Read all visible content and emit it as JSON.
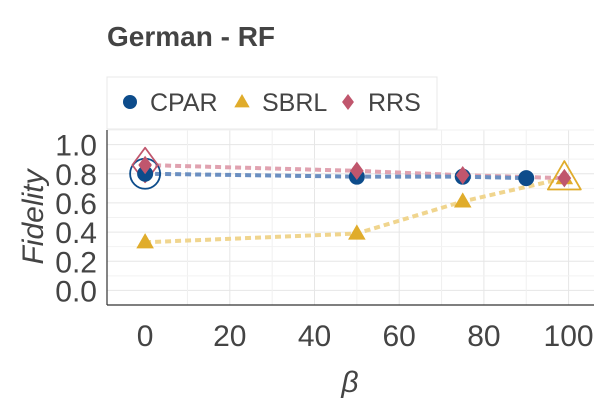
{
  "chart_data": {
    "type": "line",
    "title": "German - RF",
    "xlabel": "β",
    "ylabel": "Fidelity",
    "xlim": [
      -9,
      106
    ],
    "ylim": [
      -0.1,
      1.1
    ],
    "xticks": [
      0,
      20,
      40,
      60,
      80,
      100
    ],
    "yticks": [
      0.0,
      0.2,
      0.4,
      0.6,
      0.8,
      1.0
    ],
    "xtick_labels": [
      "0",
      "20",
      "40",
      "60",
      "80",
      "100"
    ],
    "ytick_labels": [
      "0.0",
      "0.2",
      "0.4",
      "0.6",
      "0.8",
      "1.0"
    ],
    "grid": true,
    "legend_position": "top",
    "series": [
      {
        "name": "CPAR",
        "marker": "circle",
        "color": "#0d4c8b",
        "line_color": "#6b8fc1",
        "x": [
          0,
          50,
          75,
          90
        ],
        "y": [
          0.8,
          0.78,
          0.78,
          0.77
        ]
      },
      {
        "name": "SBRL",
        "marker": "triangle",
        "color": "#e0ac2b",
        "line_color": "#f0d58e",
        "x": [
          0,
          50,
          75,
          99
        ],
        "y": [
          0.33,
          0.39,
          0.61,
          0.77
        ]
      },
      {
        "name": "RRS",
        "marker": "diamond",
        "color": "#c0566d",
        "line_color": "#e0a2b0",
        "x": [
          0,
          50,
          75,
          99
        ],
        "y": [
          0.86,
          0.82,
          0.79,
          0.77
        ]
      }
    ],
    "highlights": [
      {
        "series": "CPAR",
        "x": 0,
        "y": 0.8
      },
      {
        "series": "SBRL",
        "x": 99,
        "y": 0.77
      },
      {
        "series": "RRS",
        "x": 0,
        "y": 0.86
      }
    ]
  }
}
